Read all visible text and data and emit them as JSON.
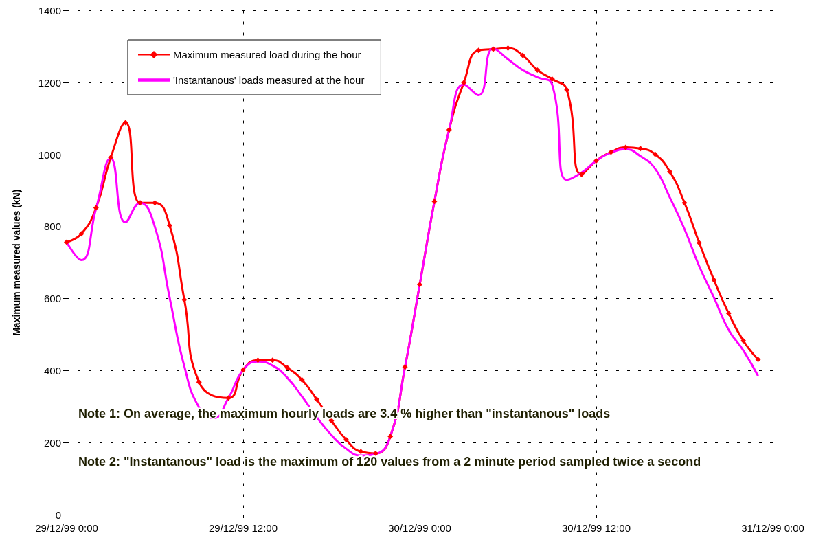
{
  "chart_data": {
    "type": "line",
    "ylabel": "Maximum measured values (kN)",
    "x": [
      "1999-12-29T00:00",
      "1999-12-29T01:00",
      "1999-12-29T02:00",
      "1999-12-29T03:00",
      "1999-12-29T04:00",
      "1999-12-29T05:00",
      "1999-12-29T06:00",
      "1999-12-29T07:00",
      "1999-12-29T08:00",
      "1999-12-29T09:00",
      "1999-12-29T10:00",
      "1999-12-29T11:00",
      "1999-12-29T12:00",
      "1999-12-29T13:00",
      "1999-12-29T14:00",
      "1999-12-29T15:00",
      "1999-12-29T16:00",
      "1999-12-29T17:00",
      "1999-12-29T18:00",
      "1999-12-29T19:00",
      "1999-12-29T20:00",
      "1999-12-29T21:00",
      "1999-12-29T22:00",
      "1999-12-29T23:00",
      "1999-12-30T00:00",
      "1999-12-30T01:00",
      "1999-12-30T02:00",
      "1999-12-30T03:00",
      "1999-12-30T04:00",
      "1999-12-30T05:00",
      "1999-12-30T06:00",
      "1999-12-30T07:00",
      "1999-12-30T08:00",
      "1999-12-30T09:00",
      "1999-12-30T10:00",
      "1999-12-30T11:00",
      "1999-12-30T12:00",
      "1999-12-30T13:00",
      "1999-12-30T14:00",
      "1999-12-30T15:00",
      "1999-12-30T16:00",
      "1999-12-30T17:00",
      "1999-12-30T18:00",
      "1999-12-30T19:00",
      "1999-12-30T20:00",
      "1999-12-30T21:00",
      "1999-12-30T22:00",
      "1999-12-30T23:00"
    ],
    "series": [
      {
        "name": "Maximum measured load during the hour",
        "color": "#ff0000",
        "marker": "diamond",
        "values": [
          757,
          780,
          852,
          992,
          1089,
          866,
          866,
          803,
          597,
          368,
          null,
          324,
          402,
          429,
          429,
          408,
          374,
          320,
          261,
          208,
          175,
          170,
          217,
          410,
          639,
          870,
          1069,
          1200,
          1290,
          1293,
          1296,
          1276,
          1235,
          1210,
          1180,
          945,
          983,
          1007,
          1020,
          1017,
          1001,
          953,
          866,
          755,
          652,
          559,
          483,
          431
        ]
      },
      {
        "name": "'Instantanous' loads measured at the hour",
        "color": "#ff00ff",
        "marker": "none",
        "values": [
          757,
          707,
          850,
          990,
          812,
          866,
          799,
          603,
          412,
          298,
          268,
          324,
          402,
          425,
          414,
          380,
          328,
          271,
          221,
          183,
          164,
          168,
          217,
          410,
          639,
          870,
          1069,
          1195,
          1165,
          1295,
          1265,
          1235,
          1215,
          1195,
          930,
          950,
          983,
          1005,
          1015,
          996,
          961,
          881,
          793,
          690,
          603,
          513,
          456,
          385
        ]
      }
    ],
    "xlim": [
      "1999-12-29T00:00",
      "1999-12-31T00:00"
    ],
    "xticks": [
      {
        "value": "1999-12-29T00:00",
        "label": "29/12/99 0:00"
      },
      {
        "value": "1999-12-29T12:00",
        "label": "29/12/99 12:00"
      },
      {
        "value": "1999-12-30T00:00",
        "label": "30/12/99 0:00"
      },
      {
        "value": "1999-12-30T12:00",
        "label": "30/12/99 12:00"
      },
      {
        "value": "1999-12-31T00:00",
        "label": "31/12/99 0:00"
      }
    ],
    "ylim": [
      0,
      1400
    ],
    "yticks": [
      0,
      200,
      400,
      600,
      800,
      1000,
      1200,
      1400
    ],
    "grid": true,
    "legend": "top left",
    "line_style": "solid",
    "annotations": [
      "Note 1: On average, the maximum hourly loads are 3.4 % higher than \"instantanous\" loads",
      "Note 2: \"Instantanous\" load is the maximum of 120 values from a 2 minute period sampled twice a second"
    ]
  }
}
